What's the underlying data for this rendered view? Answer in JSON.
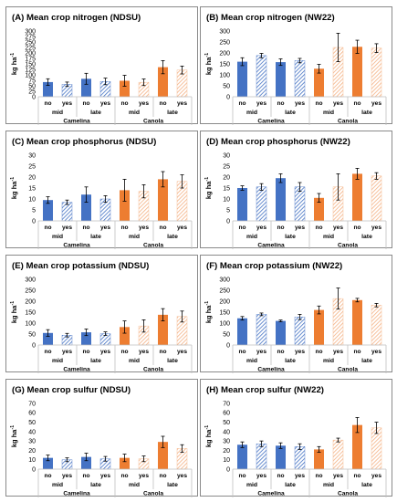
{
  "colors": {
    "camelina": "#4472C4",
    "canola": "#ED7D31",
    "hatch_camelina": "#4472C4",
    "hatch_canola": "#F4B183"
  },
  "chart_data": [
    {
      "type": "bar",
      "title": "(A) Mean crop nitrogen (NDSU)",
      "ylabel": "kg ha-1",
      "ylim": [
        0,
        300
      ],
      "yticks": [
        0,
        25,
        50,
        75,
        100,
        125,
        150,
        175,
        200,
        225,
        250,
        275,
        300
      ],
      "categories": [
        "no",
        "yes",
        "no",
        "yes",
        "no",
        "yes",
        "no",
        "yes"
      ],
      "timing": [
        "mid",
        "late",
        "mid",
        "late"
      ],
      "crops": [
        "Camelina",
        "Canola"
      ],
      "values": [
        67,
        57,
        82,
        70,
        73,
        66,
        135,
        122
      ],
      "errors": [
        15,
        10,
        25,
        15,
        25,
        15,
        30,
        18
      ]
    },
    {
      "type": "bar",
      "title": "(B) Mean crop nitrogen (NW22)",
      "ylabel": "kg ha-1",
      "ylim": [
        0,
        300
      ],
      "yticks": [
        0,
        50,
        100,
        150,
        200,
        250,
        300
      ],
      "categories": [
        "no",
        "yes",
        "no",
        "yes",
        "no",
        "yes",
        "no",
        "yes"
      ],
      "timing": [
        "mid",
        "late",
        "mid",
        "late"
      ],
      "crops": [
        "Camelina",
        "Canola"
      ],
      "values": [
        160,
        188,
        158,
        165,
        128,
        225,
        228,
        222
      ],
      "errors": [
        18,
        10,
        15,
        10,
        20,
        65,
        30,
        20
      ]
    },
    {
      "type": "bar",
      "title": "(C) Mean crop phosphorus (NDSU)",
      "ylabel": "kg ha-1",
      "ylim": [
        0,
        30
      ],
      "yticks": [
        0,
        5,
        10,
        15,
        20,
        25,
        30
      ],
      "categories": [
        "no",
        "yes",
        "no",
        "yes",
        "no",
        "yes",
        "no",
        "yes"
      ],
      "timing": [
        "mid",
        "late",
        "mid",
        "late"
      ],
      "crops": [
        "Camelina",
        "Canola"
      ],
      "values": [
        9.5,
        8.5,
        12,
        10,
        14,
        13.5,
        19,
        18
      ],
      "errors": [
        1.5,
        1,
        3.5,
        1.5,
        5,
        3,
        3.5,
        3
      ]
    },
    {
      "type": "bar",
      "title": "(D) Mean crop phosphorus (NW22)",
      "ylabel": "kg ha-1",
      "ylim": [
        0,
        30
      ],
      "yticks": [
        0,
        5,
        10,
        15,
        20,
        25,
        30
      ],
      "categories": [
        "no",
        "yes",
        "no",
        "yes",
        "no",
        "yes",
        "no",
        "yes"
      ],
      "timing": [
        "mid",
        "late",
        "mid",
        "late"
      ],
      "crops": [
        "Camelina",
        "Canola"
      ],
      "values": [
        15,
        15.5,
        19.5,
        15.5,
        10.5,
        15.5,
        21.5,
        20.5
      ],
      "errors": [
        1,
        1.5,
        2,
        2,
        2,
        6,
        2.5,
        1.5
      ]
    },
    {
      "type": "bar",
      "title": "(E) Mean crop potassium (NDSU)",
      "ylabel": "kg ha-1",
      "ylim": [
        0,
        300
      ],
      "yticks": [
        0,
        50,
        100,
        150,
        200,
        250,
        300
      ],
      "categories": [
        "no",
        "yes",
        "no",
        "yes",
        "no",
        "yes",
        "no",
        "yes"
      ],
      "timing": [
        "mid",
        "late",
        "mid",
        "late"
      ],
      "crops": [
        "Camelina",
        "Canola"
      ],
      "values": [
        55,
        45,
        58,
        52,
        82,
        87,
        138,
        130
      ],
      "errors": [
        15,
        8,
        15,
        8,
        28,
        28,
        28,
        25
      ]
    },
    {
      "type": "bar",
      "title": "(F) Mean crop potassium (NW22)",
      "ylabel": "kg ha-1",
      "ylim": [
        0,
        300
      ],
      "yticks": [
        0,
        50,
        100,
        150,
        200,
        250,
        300
      ],
      "categories": [
        "no",
        "yes",
        "no",
        "yes",
        "no",
        "yes",
        "no",
        "yes"
      ],
      "timing": [
        "mid",
        "late",
        "mid",
        "late"
      ],
      "crops": [
        "Camelina",
        "Canola"
      ],
      "values": [
        122,
        140,
        110,
        128,
        160,
        212,
        205,
        182
      ],
      "errors": [
        8,
        6,
        4,
        12,
        18,
        48,
        8,
        8
      ]
    },
    {
      "type": "bar",
      "title": "(G) Mean crop sulfur (NDSU)",
      "ylabel": "kg ha-1",
      "ylim": [
        0,
        70
      ],
      "yticks": [
        0,
        10,
        20,
        30,
        40,
        50,
        60,
        70
      ],
      "categories": [
        "no",
        "yes",
        "no",
        "yes",
        "no",
        "yes",
        "no",
        "yes"
      ],
      "timing": [
        "mid",
        "late",
        "mid",
        "late"
      ],
      "crops": [
        "Camelina",
        "Canola"
      ],
      "values": [
        12,
        10,
        13,
        11,
        12,
        11,
        29,
        22
      ],
      "errors": [
        3,
        2,
        4,
        2.5,
        4,
        3,
        6,
        4
      ]
    },
    {
      "type": "bar",
      "title": "(H) Mean crop sulfur (NW22)",
      "ylabel": "kg ha-1",
      "ylim": [
        0,
        70
      ],
      "yticks": [
        0,
        10,
        20,
        30,
        40,
        50,
        60,
        70
      ],
      "categories": [
        "no",
        "yes",
        "no",
        "yes",
        "no",
        "yes",
        "no",
        "yes"
      ],
      "timing": [
        "mid",
        "late",
        "mid",
        "late"
      ],
      "crops": [
        "Camelina",
        "Canola"
      ],
      "values": [
        26,
        27,
        25,
        24,
        21,
        31,
        47,
        44
      ],
      "errors": [
        3,
        3,
        3,
        3,
        3,
        2,
        8,
        6
      ]
    }
  ]
}
